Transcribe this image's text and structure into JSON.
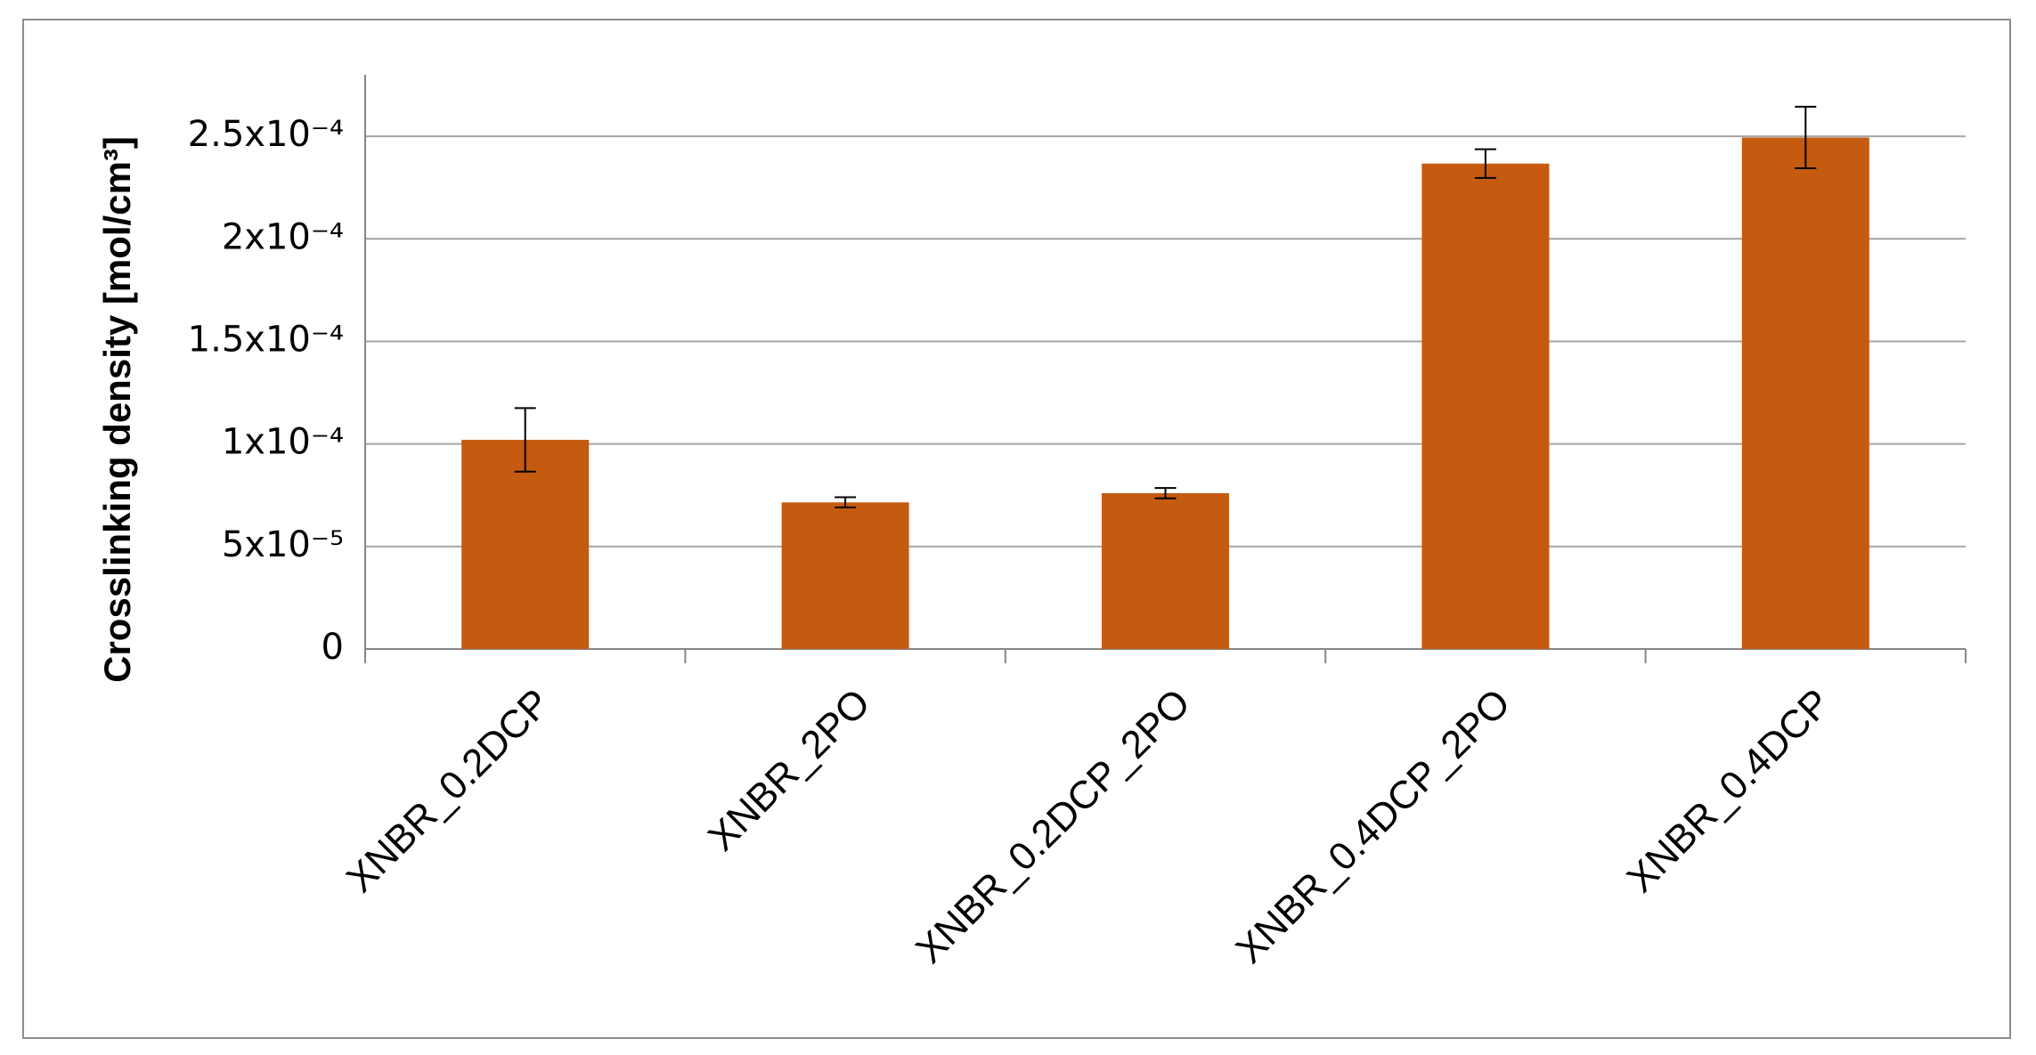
{
  "chart_data": {
    "type": "bar",
    "y_label": "Crosslinking density [mol/cm³]",
    "categories": [
      "XNBR_0.2DCP",
      "XNBR_2PO",
      "XNBR_0.2DCP_2PO",
      "XNBR_0.4DCP_2PO",
      "XNBR_0.4DCP"
    ],
    "values": [
      0.000102,
      7.15e-05,
      7.6e-05,
      0.0002367,
      0.0002494
    ],
    "errors": [
      1.55e-05,
      2.5e-06,
      2.5e-06,
      7e-06,
      1.5e-05
    ],
    "color": "#c55a11",
    "ylim": [
      0,
      0.00028
    ],
    "yticks": [
      0,
      {
        "value": 5e-05,
        "label": "5x10⁻⁵"
      },
      {
        "value": 0.0001,
        "label": "1x10⁻⁴"
      },
      {
        "value": 0.00015,
        "label": "1.5x10⁻⁴"
      },
      {
        "value": 0.0002,
        "label": "2x10⁻⁴"
      },
      {
        "value": 0.00025,
        "label": "2.5x10⁻⁴"
      }
    ],
    "grid": true
  }
}
